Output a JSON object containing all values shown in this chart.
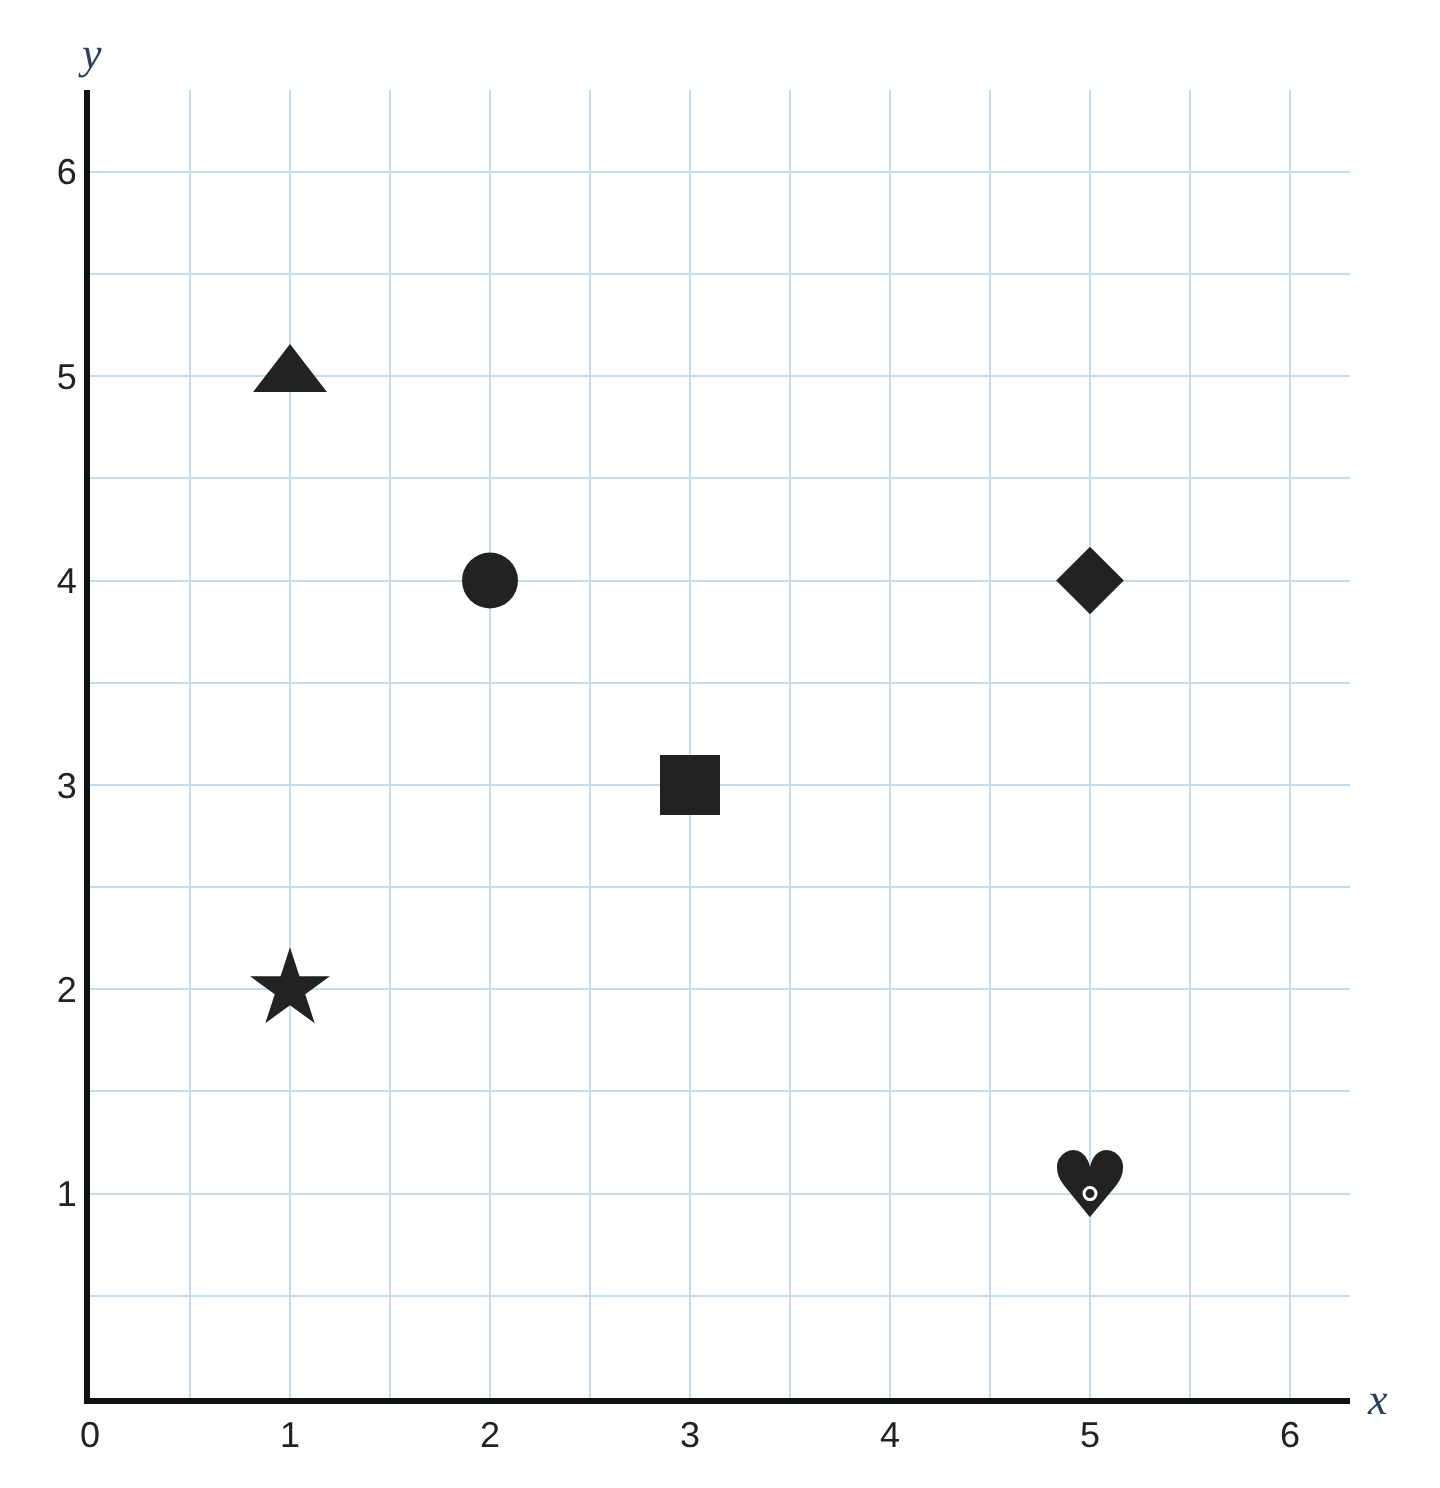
{
  "chart_data": {
    "type": "scatter",
    "xlabel": "x",
    "ylabel": "y",
    "series": [
      {
        "x": [
          1
        ],
        "values": [
          5
        ],
        "marker": "triangle",
        "color": "#222222"
      },
      {
        "x": [
          2
        ],
        "values": [
          4
        ],
        "marker": "circle",
        "color": "#222222"
      },
      {
        "x": [
          5
        ],
        "values": [
          4
        ],
        "marker": "diamond",
        "color": "#222222"
      },
      {
        "x": [
          3
        ],
        "values": [
          3
        ],
        "marker": "square",
        "color": "#222222"
      },
      {
        "x": [
          1
        ],
        "values": [
          2
        ],
        "marker": "star",
        "color": "#222222"
      },
      {
        "x": [
          5
        ],
        "values": [
          1
        ],
        "marker": "circle",
        "color": "#222222"
      }
    ],
    "annotations": [
      {
        "text": "♥",
        "x": 5,
        "y": 1
      }
    ],
    "xlim": [
      0,
      6.3
    ],
    "ylim": [
      0,
      6.4
    ],
    "xticks": [
      0,
      {
        "value": 0.5,
        "label": null
      },
      1,
      {
        "value": 1.5,
        "label": null
      },
      2,
      {
        "value": 2.5,
        "label": null
      },
      3,
      {
        "value": 3.5,
        "label": null
      },
      4,
      {
        "value": 4.5,
        "label": null
      },
      5,
      {
        "value": 5.5,
        "label": null
      },
      6
    ],
    "yticks": [
      {
        "value": 0.5,
        "label": null
      },
      1,
      {
        "value": 1.5,
        "label": null
      },
      2,
      {
        "value": 2.5,
        "label": null
      },
      3,
      {
        "value": 3.5,
        "label": null
      },
      4,
      {
        "value": 4.5,
        "label": null
      },
      5,
      {
        "value": 5.5,
        "label": null
      },
      6
    ],
    "grid": true
  }
}
